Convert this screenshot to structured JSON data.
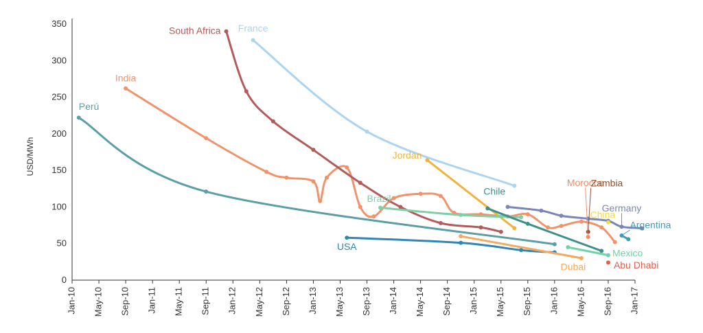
{
  "chart_data": {
    "type": "line",
    "title": "",
    "xlabel": "",
    "ylabel": "USD/MWh",
    "ylim": [
      0,
      350
    ],
    "yticks": [
      0,
      50,
      100,
      150,
      200,
      250,
      300,
      350
    ],
    "xticks": [
      "Jan-10",
      "May-10",
      "Sep-10",
      "Jan-11",
      "May-11",
      "Sep-11",
      "Jan-12",
      "May-12",
      "Sep-12",
      "Jan-13",
      "May-13",
      "Sep-13",
      "Jan-14",
      "May-14",
      "Sep-14",
      "Jan-15",
      "May-15",
      "Sep-15",
      "Jan-16",
      "May-16",
      "Sep-16",
      "Jan-17"
    ],
    "grid": false,
    "legend": "none",
    "series": [
      {
        "name": "Perú",
        "color": "#5b9ea6",
        "x": [
          "Feb-10",
          "Sep-11",
          "Jan-16"
        ],
        "y": [
          222,
          121,
          49
        ]
      },
      {
        "name": "India",
        "color": "#f0936a",
        "x": [
          "Sep-10",
          "Sep-11",
          "Jun-12",
          "Sep-12",
          "Jan-13",
          "Feb-13",
          "Mar-13",
          "Jun-13",
          "Aug-13",
          "Oct-13",
          "Jan-14",
          "May-14",
          "Aug-14",
          "Oct-14",
          "Feb-15",
          "Jun-15",
          "Sep-15",
          "Dec-15",
          "Feb-16",
          "May-16",
          "Aug-16",
          "Oct-16"
        ],
        "y": [
          262,
          194,
          148,
          140,
          135,
          108,
          140,
          154,
          100,
          87,
          112,
          118,
          115,
          92,
          90,
          87,
          90,
          72,
          74,
          80,
          72,
          52
        ]
      },
      {
        "name": "South Africa",
        "color": "#b35a5a",
        "x": [
          "Dec-11",
          "Mar-12",
          "Jul-12",
          "Jan-13",
          "Aug-13",
          "Feb-14",
          "Aug-14",
          "Feb-15",
          "May-15"
        ],
        "y": [
          340,
          258,
          217,
          178,
          133,
          100,
          78,
          72,
          66
        ]
      },
      {
        "name": "France",
        "color": "#aad4f2",
        "x": [
          "Apr-12",
          "Sep-13",
          "Jul-15"
        ],
        "y": [
          328,
          203,
          129
        ]
      },
      {
        "name": "Jordan",
        "color": "#f0b43c",
        "x": [
          "Jun-14",
          "Jul-15"
        ],
        "y": [
          164,
          71
        ]
      },
      {
        "name": "Brazil",
        "color": "#7fd0a8",
        "x": [
          "Nov-13",
          "Nov-14",
          "Aug-15"
        ],
        "y": [
          99,
          89,
          86
        ]
      },
      {
        "name": "Chile",
        "color": "#3f8f8c",
        "x": [
          "Mar-15",
          "Sep-15",
          "Aug-16"
        ],
        "y": [
          98,
          77,
          40
        ]
      },
      {
        "name": "USA",
        "color": "#2f86b5",
        "x": [
          "Jun-13",
          "Nov-14",
          "Aug-15",
          "Jan-16"
        ],
        "y": [
          58,
          51,
          41,
          38
        ]
      },
      {
        "name": "Dubai",
        "color": "#f5a85f",
        "x": [
          "Nov-14",
          "May-16"
        ],
        "y": [
          60,
          30
        ]
      },
      {
        "name": "Germany",
        "color": "#7a86b8",
        "x": [
          "Jun-15",
          "Nov-15",
          "Feb-16",
          "Jun-16",
          "Sep-16",
          "Nov-16",
          "Feb-17"
        ],
        "y": [
          100,
          95,
          88,
          84,
          81,
          73,
          71
        ]
      },
      {
        "name": "Mexico",
        "color": "#6fd3a6",
        "x": [
          "Mar-16",
          "Sep-16"
        ],
        "y": [
          45,
          34
        ]
      },
      {
        "name": "Argentina",
        "color": "#3f9bb8",
        "x": [
          "Nov-16",
          "Dec-16"
        ],
        "y": [
          61,
          56
        ]
      },
      {
        "name": "Morocco",
        "color": "#ef8a6c",
        "x": [
          "Jun-16"
        ],
        "y": [
          59
        ]
      },
      {
        "name": "Zambia",
        "color": "#8b5230",
        "x": [
          "Jun-16"
        ],
        "y": [
          66
        ]
      },
      {
        "name": "China",
        "color": "#f5dd3a",
        "x": [
          "Sep-16"
        ],
        "y": [
          79
        ]
      },
      {
        "name": "Abu Dhabi",
        "color": "#e0604d",
        "x": [
          "Sep-16"
        ],
        "y": [
          24
        ]
      }
    ]
  }
}
